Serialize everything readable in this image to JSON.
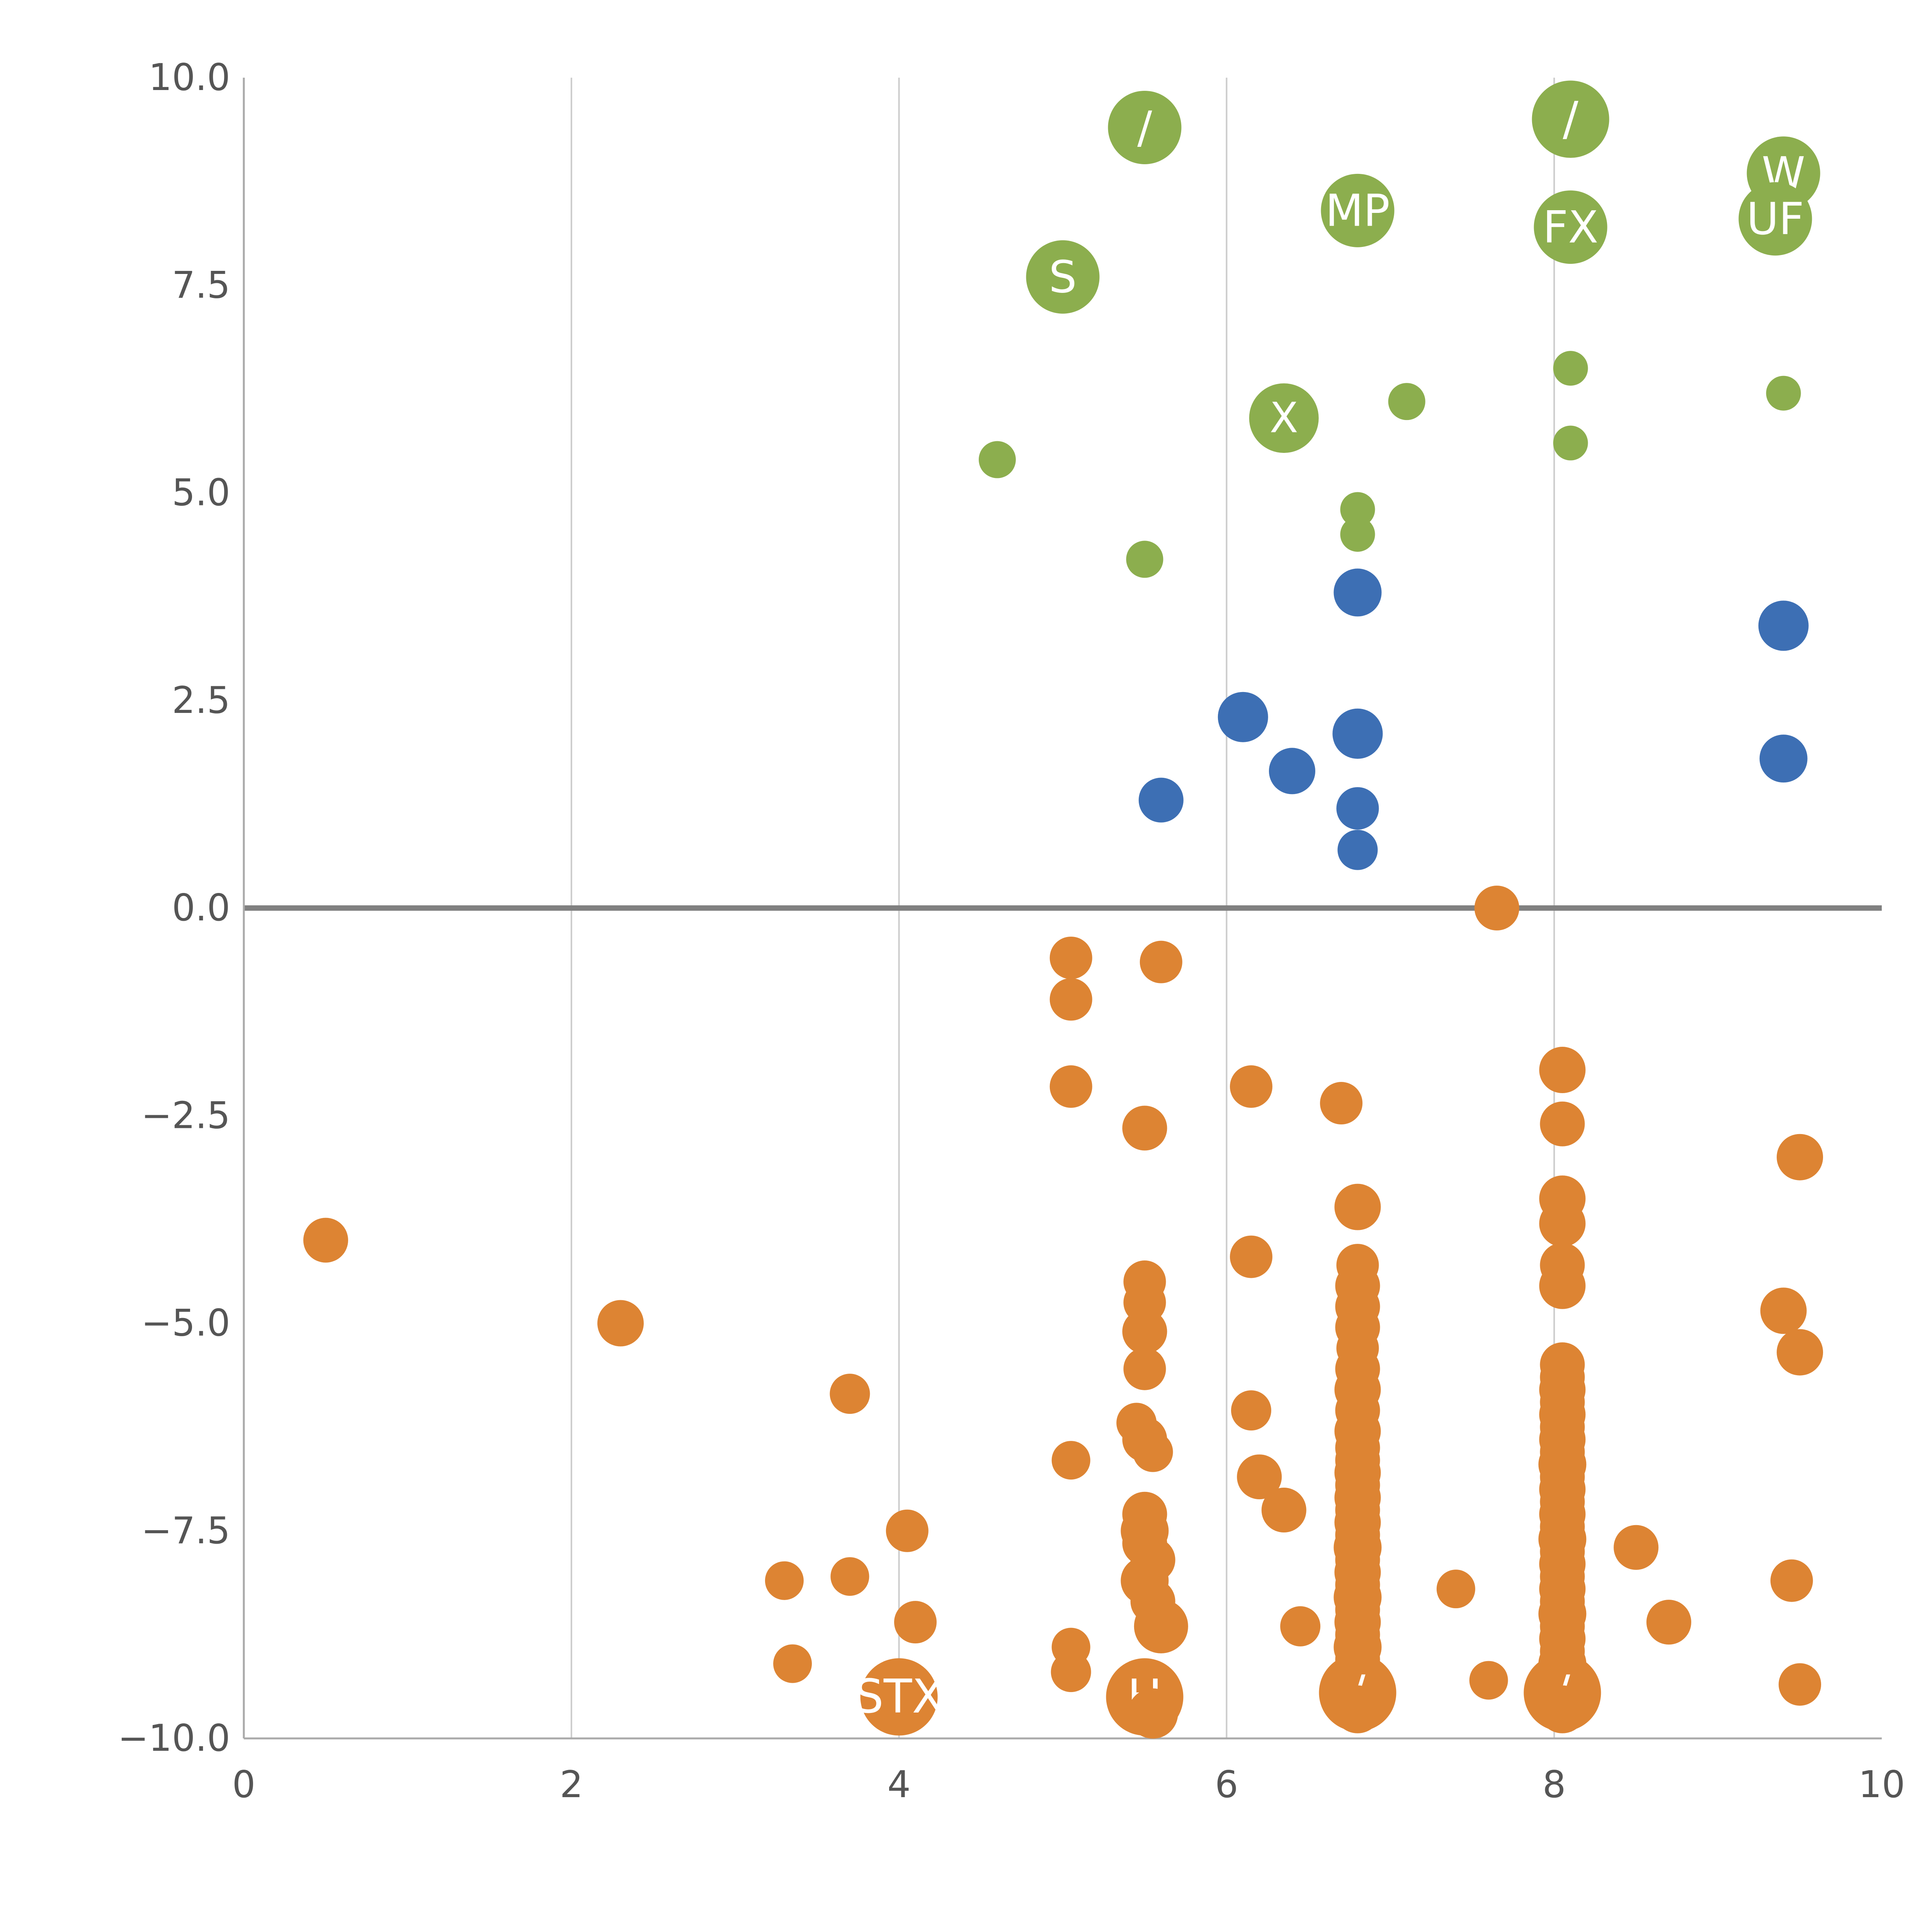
{
  "chart_data": {
    "type": "scatter",
    "title": "",
    "xlabel": "",
    "ylabel": "",
    "xlim": [
      0,
      10
    ],
    "ylim": [
      -10,
      10
    ],
    "x_tick_values": [
      0,
      2,
      4,
      6,
      8,
      10
    ],
    "x_tick_labels": [
      "0",
      "2",
      "4",
      "6",
      "8",
      "10"
    ],
    "y_tick_values": [
      10,
      7.5,
      5,
      2.5,
      0,
      -2.5,
      -5,
      -7.5,
      -10
    ],
    "y_tick_labels": [
      "10.0",
      "7.5",
      "5.0",
      "2.5",
      "0.0",
      "−2.5",
      "−5.0",
      "−7.5",
      "−10.0"
    ],
    "grid": {
      "vertical_gridlines_at_x": [
        2,
        4,
        6,
        8
      ],
      "gridline_color": "#cccccc",
      "zero_line_y": 0,
      "zero_line_color": "#808080",
      "axis_color": "#aaaaaa",
      "tick_label_color": "#555555"
    },
    "legend": "none",
    "point_format": [
      "x",
      "y",
      "radius_px",
      "label"
    ],
    "series": [
      {
        "name": "green",
        "color": "#8CAE4E",
        "points": [
          [
            5.5,
            9.4,
            95,
            "/"
          ],
          [
            8.1,
            9.5,
            100,
            "/"
          ],
          [
            9.4,
            8.85,
            95,
            "W"
          ],
          [
            9.35,
            8.3,
            95,
            "UF"
          ],
          [
            6.8,
            8.4,
            95,
            "MP"
          ],
          [
            8.1,
            8.2,
            95,
            "FX"
          ],
          [
            5.0,
            7.6,
            95,
            "S"
          ],
          [
            6.35,
            5.9,
            90,
            "X"
          ],
          [
            4.6,
            5.4,
            48,
            ""
          ],
          [
            5.5,
            4.2,
            48,
            ""
          ],
          [
            7.1,
            6.1,
            48,
            ""
          ],
          [
            8.1,
            6.5,
            45,
            ""
          ],
          [
            8.1,
            5.6,
            45,
            ""
          ],
          [
            9.4,
            6.2,
            45,
            ""
          ],
          [
            6.8,
            4.8,
            45,
            ""
          ],
          [
            6.8,
            4.5,
            45,
            ""
          ]
        ]
      },
      {
        "name": "blue",
        "color": "#3D6FB4",
        "points": [
          [
            6.8,
            3.8,
            62,
            ""
          ],
          [
            9.4,
            3.4,
            65,
            ""
          ],
          [
            6.1,
            2.3,
            65,
            ""
          ],
          [
            6.8,
            2.1,
            65,
            ""
          ],
          [
            6.4,
            1.65,
            60,
            ""
          ],
          [
            9.4,
            1.8,
            62,
            ""
          ],
          [
            5.6,
            1.3,
            58,
            ""
          ],
          [
            6.8,
            1.2,
            55,
            ""
          ],
          [
            6.8,
            0.7,
            52,
            ""
          ]
        ]
      },
      {
        "name": "orange",
        "color": "#DD8433",
        "points": [
          [
            7.65,
            0.0,
            58,
            ""
          ],
          [
            5.05,
            -0.6,
            55,
            ""
          ],
          [
            5.6,
            -0.65,
            55,
            ""
          ],
          [
            5.05,
            -1.1,
            55,
            ""
          ],
          [
            5.05,
            -2.15,
            55,
            ""
          ],
          [
            6.15,
            -2.15,
            55,
            ""
          ],
          [
            6.7,
            -2.35,
            55,
            ""
          ],
          [
            8.05,
            -1.95,
            60,
            ""
          ],
          [
            5.5,
            -2.65,
            58,
            ""
          ],
          [
            8.05,
            -2.6,
            58,
            ""
          ],
          [
            9.5,
            -3.0,
            60,
            ""
          ],
          [
            0.5,
            -4.0,
            58,
            ""
          ],
          [
            2.3,
            -5.0,
            60,
            ""
          ],
          [
            3.7,
            -5.85,
            52,
            ""
          ],
          [
            6.15,
            -4.2,
            55,
            ""
          ],
          [
            9.4,
            -4.85,
            60,
            ""
          ],
          [
            9.5,
            -5.35,
            60,
            ""
          ],
          [
            6.15,
            -6.05,
            52,
            ""
          ],
          [
            6.2,
            -6.85,
            58,
            ""
          ],
          [
            6.35,
            -7.25,
            58,
            ""
          ],
          [
            5.05,
            -6.65,
            50,
            ""
          ],
          [
            4.05,
            -7.5,
            55,
            ""
          ],
          [
            3.3,
            -8.1,
            50,
            ""
          ],
          [
            3.7,
            -8.05,
            50,
            ""
          ],
          [
            4.1,
            -8.6,
            55,
            ""
          ],
          [
            3.35,
            -9.1,
            50,
            ""
          ],
          [
            5.05,
            -8.9,
            50,
            ""
          ],
          [
            5.05,
            -9.2,
            52,
            ""
          ],
          [
            4.0,
            -9.5,
            100,
            "STX"
          ],
          [
            7.4,
            -8.2,
            50,
            ""
          ],
          [
            6.45,
            -8.65,
            52,
            ""
          ],
          [
            8.5,
            -7.7,
            58,
            ""
          ],
          [
            8.7,
            -8.6,
            58,
            ""
          ],
          [
            9.45,
            -8.1,
            55,
            ""
          ],
          [
            9.5,
            -9.35,
            55,
            ""
          ],
          [
            7.6,
            -9.3,
            50,
            ""
          ],
          [
            5.5,
            -4.5,
            55,
            ""
          ],
          [
            5.5,
            -4.75,
            55,
            ""
          ],
          [
            5.5,
            -5.1,
            58,
            ""
          ],
          [
            5.5,
            -5.55,
            55,
            ""
          ],
          [
            5.45,
            -6.2,
            52,
            ""
          ],
          [
            5.5,
            -6.4,
            58,
            ""
          ],
          [
            5.55,
            -6.55,
            52,
            ""
          ],
          [
            5.5,
            -7.3,
            58,
            ""
          ],
          [
            5.5,
            -7.5,
            62,
            ""
          ],
          [
            5.5,
            -7.65,
            58,
            ""
          ],
          [
            5.55,
            -7.85,
            58,
            ""
          ],
          [
            5.5,
            -8.1,
            62,
            ""
          ],
          [
            5.55,
            -8.35,
            58,
            ""
          ],
          [
            5.6,
            -8.65,
            70,
            ""
          ],
          [
            5.5,
            -9.5,
            100,
            "H"
          ],
          [
            5.55,
            -9.7,
            65,
            ""
          ],
          [
            6.8,
            -3.6,
            60,
            ""
          ],
          [
            6.8,
            -4.3,
            55,
            ""
          ],
          [
            6.8,
            -4.55,
            58,
            ""
          ],
          [
            6.8,
            -4.8,
            58,
            ""
          ],
          [
            6.8,
            -5.05,
            58,
            ""
          ],
          [
            6.8,
            -5.3,
            55,
            ""
          ],
          [
            6.8,
            -5.55,
            58,
            ""
          ],
          [
            6.8,
            -5.8,
            60,
            ""
          ],
          [
            6.8,
            -6.05,
            58,
            ""
          ],
          [
            6.8,
            -6.3,
            60,
            ""
          ],
          [
            6.8,
            -6.5,
            58,
            ""
          ],
          [
            6.8,
            -6.65,
            58,
            ""
          ],
          [
            6.8,
            -6.8,
            60,
            ""
          ],
          [
            6.8,
            -6.95,
            58,
            ""
          ],
          [
            6.8,
            -7.1,
            60,
            ""
          ],
          [
            6.8,
            -7.25,
            58,
            ""
          ],
          [
            6.8,
            -7.4,
            60,
            ""
          ],
          [
            6.8,
            -7.55,
            58,
            ""
          ],
          [
            6.8,
            -7.7,
            62,
            ""
          ],
          [
            6.8,
            -7.85,
            58,
            ""
          ],
          [
            6.8,
            -8.0,
            60,
            ""
          ],
          [
            6.8,
            -8.15,
            58,
            ""
          ],
          [
            6.8,
            -8.3,
            62,
            ""
          ],
          [
            6.8,
            -8.45,
            58,
            ""
          ],
          [
            6.8,
            -8.6,
            60,
            ""
          ],
          [
            6.8,
            -8.75,
            58,
            ""
          ],
          [
            6.8,
            -8.9,
            62,
            ""
          ],
          [
            6.8,
            -9.05,
            58,
            ""
          ],
          [
            6.8,
            -9.2,
            60,
            ""
          ],
          [
            6.8,
            -9.45,
            100,
            "/"
          ],
          [
            6.8,
            -9.65,
            62,
            ""
          ],
          [
            8.05,
            -3.5,
            60,
            ""
          ],
          [
            8.05,
            -3.8,
            60,
            ""
          ],
          [
            8.05,
            -4.3,
            58,
            ""
          ],
          [
            8.05,
            -4.55,
            60,
            ""
          ],
          [
            8.05,
            -5.5,
            58,
            ""
          ],
          [
            8.05,
            -5.65,
            58,
            ""
          ],
          [
            8.05,
            -5.8,
            60,
            ""
          ],
          [
            8.05,
            -5.95,
            58,
            ""
          ],
          [
            8.05,
            -6.1,
            60,
            ""
          ],
          [
            8.05,
            -6.25,
            58,
            ""
          ],
          [
            8.05,
            -6.4,
            60,
            ""
          ],
          [
            8.05,
            -6.55,
            58,
            ""
          ],
          [
            8.05,
            -6.7,
            62,
            ""
          ],
          [
            8.05,
            -6.85,
            58,
            ""
          ],
          [
            8.05,
            -7.0,
            60,
            ""
          ],
          [
            8.05,
            -7.15,
            58,
            ""
          ],
          [
            8.05,
            -7.3,
            60,
            ""
          ],
          [
            8.05,
            -7.45,
            58,
            ""
          ],
          [
            8.05,
            -7.6,
            62,
            ""
          ],
          [
            8.05,
            -7.75,
            58,
            ""
          ],
          [
            8.05,
            -7.9,
            60,
            ""
          ],
          [
            8.05,
            -8.05,
            58,
            ""
          ],
          [
            8.05,
            -8.2,
            60,
            ""
          ],
          [
            8.05,
            -8.35,
            58,
            ""
          ],
          [
            8.05,
            -8.5,
            62,
            ""
          ],
          [
            8.05,
            -8.65,
            58,
            ""
          ],
          [
            8.05,
            -8.8,
            60,
            ""
          ],
          [
            8.05,
            -8.95,
            58,
            ""
          ],
          [
            8.05,
            -9.1,
            62,
            ""
          ],
          [
            8.05,
            -9.25,
            60,
            ""
          ],
          [
            8.05,
            -9.45,
            100,
            "/"
          ],
          [
            8.05,
            -9.65,
            62,
            ""
          ]
        ]
      }
    ],
    "bubble_label_color": "#ffffff"
  }
}
